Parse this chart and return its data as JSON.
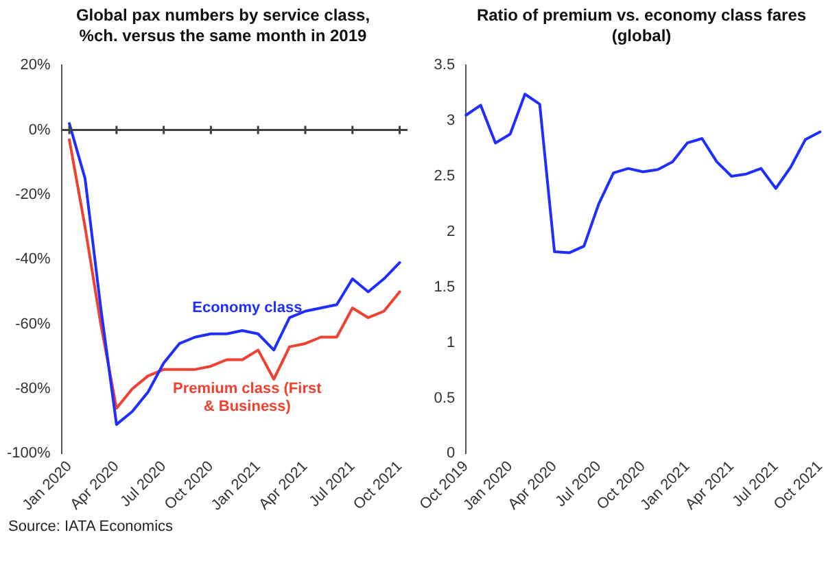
{
  "chart_data": [
    {
      "type": "line",
      "title": "Global pax numbers by service class, %ch. versus the same month in 2019",
      "categories": [
        "Jan 2020",
        null,
        null,
        "Apr 2020",
        null,
        null,
        "Jul 2020",
        null,
        null,
        "Oct 2020",
        null,
        null,
        "Jan 2021",
        null,
        null,
        "Apr 2021",
        null,
        null,
        "Jul 2021",
        null,
        null,
        "Oct 2021"
      ],
      "series": [
        {
          "name": "Economy class",
          "color": "#1f2eff",
          "values": [
            2,
            -15,
            -55,
            -91,
            -87,
            -81,
            -72,
            -66,
            -64,
            -63,
            -63,
            -62,
            -63,
            -68,
            -58,
            -56,
            -55,
            -54,
            -46,
            -50,
            -46,
            -41
          ]
        },
        {
          "name": "Premium class (First & Business)",
          "color": "#f04030",
          "values": [
            -3,
            -30,
            -60,
            -86,
            -80,
            -76,
            -74,
            -74,
            -74,
            -73,
            -71,
            -71,
            -68,
            -77,
            -67,
            -66,
            -64,
            -64,
            -55,
            -58,
            -56,
            -50
          ]
        }
      ],
      "ylim": [
        -100,
        20
      ],
      "yticks": [
        {
          "value": -100,
          "label": "-100%"
        },
        {
          "value": -80,
          "label": "-80%"
        },
        {
          "value": -60,
          "label": "-60%"
        },
        {
          "value": -40,
          "label": "-40%"
        },
        {
          "value": -20,
          "label": "-20%"
        },
        {
          "value": 0,
          "label": "0%"
        },
        {
          "value": 20,
          "label": "20%"
        }
      ],
      "ref_lines": [
        {
          "axis": "y",
          "value": 0,
          "color": "#404040"
        }
      ],
      "grid": false,
      "legend": false,
      "marker": "none",
      "line_style": "solid",
      "annotations": [
        "Source: IATA Economics"
      ]
    },
    {
      "type": "line",
      "title": "Ratio of premium vs. economy class fares (global)",
      "categories": [
        "Oct 2019",
        null,
        null,
        "Jan 2020",
        null,
        null,
        "Apr 2020",
        null,
        null,
        "Jul 2020",
        null,
        null,
        "Oct 2020",
        null,
        null,
        "Jan 2021",
        null,
        null,
        "Apr 2021",
        null,
        null,
        "Jul 2021",
        null,
        null,
        "Oct 2021"
      ],
      "series": [
        {
          "color": "#1f2eff",
          "values": [
            3.05,
            3.14,
            2.8,
            2.88,
            3.24,
            3.15,
            1.82,
            1.81,
            1.87,
            2.25,
            2.53,
            2.57,
            2.54,
            2.56,
            2.63,
            2.8,
            2.84,
            2.63,
            2.5,
            2.52,
            2.57,
            2.39,
            2.58,
            2.83,
            2.9
          ]
        }
      ],
      "ylim": [
        0,
        3.5
      ],
      "yticks": [
        0,
        0.5,
        1,
        1.5,
        2,
        2.5,
        3,
        3.5
      ],
      "grid": false,
      "legend": false,
      "marker": "none",
      "line_style": "solid"
    }
  ]
}
